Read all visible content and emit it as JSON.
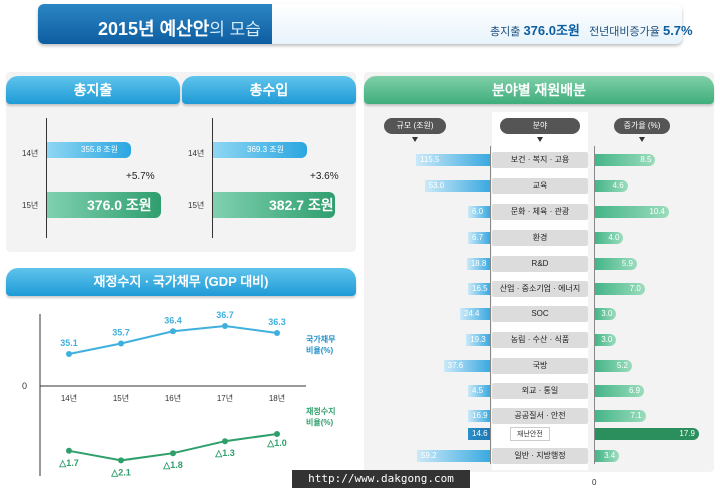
{
  "header": {
    "title_bold": "2015년 예산안",
    "title_rest": "의 모습",
    "total_label": "총지출",
    "total_value": "376.0조원",
    "growth_label": "전년대비증가율",
    "growth_value": "5.7%"
  },
  "spending_panel": {
    "title": "총지출",
    "y14": "14년",
    "y15": "15년",
    "v14": "355.8 조원",
    "v15": "376.0 조원",
    "change": "+5.7%"
  },
  "revenue_panel": {
    "title": "총수입",
    "y14": "14년",
    "y15": "15년",
    "v14": "369.3 조원",
    "v15": "382.7 조원",
    "change": "+3.6%"
  },
  "fiscal_panel": {
    "title": "재정수지 · 국가채무 (GDP 대비)",
    "zero": "0",
    "debt_label": "국가채무\n비율(%)",
    "balance_label": "재정수지\n비율(%)"
  },
  "allocation_panel": {
    "title": "분야별 재원배분",
    "col_scale": "규모 (조원)",
    "col_field": "분야",
    "col_growth": "증가율 (%)",
    "zero": "0",
    "sub_label": "재난안전"
  },
  "chart_data": [
    {
      "type": "line",
      "title": "재정수지 · 국가채무 (GDP 대비)",
      "categories": [
        "14년",
        "15년",
        "16년",
        "17년",
        "18년"
      ],
      "series": [
        {
          "name": "국가채무 비율(%)",
          "values": [
            35.1,
            35.7,
            36.4,
            36.7,
            36.3
          ],
          "labels": [
            "35.1",
            "35.7",
            "36.4",
            "36.7",
            "36.3"
          ],
          "color": "#3fb0dd"
        },
        {
          "name": "재정수지 비율(%)",
          "values": [
            -1.7,
            -2.1,
            -1.8,
            -1.3,
            -1.0
          ],
          "labels": [
            "△1.7",
            "△2.1",
            "△1.8",
            "△1.3",
            "△1.0"
          ],
          "color": "#2e9e6b"
        }
      ]
    },
    {
      "type": "bar",
      "title": "분야별 재원배분",
      "categories": [
        "보건 · 복지 · 고용",
        "교육",
        "문화 · 체육 · 관광",
        "환경",
        "R&D",
        "산업 · 중소기업 · 에너지",
        "SOC",
        "농림 · 수산 · 식품",
        "국방",
        "외교 · 통일",
        "공공질서 · 안전",
        "재난안전",
        "일반 · 지방행정"
      ],
      "series": [
        {
          "name": "규모 (조원)",
          "values": [
            115.5,
            53.0,
            6.0,
            6.7,
            18.8,
            16.5,
            24.4,
            19.3,
            37.6,
            4.5,
            16.9,
            14.6,
            59.2
          ],
          "labels": [
            "115.5",
            "53.0",
            "6.0",
            "6.7",
            "18.8",
            "16.5",
            "24.4",
            "19.3",
            "37.6",
            "4.5",
            "16.9",
            "14.6",
            "59.2"
          ]
        },
        {
          "name": "증가율 (%)",
          "values": [
            8.5,
            4.6,
            10.4,
            4.0,
            5.9,
            7.0,
            3.0,
            3.0,
            5.2,
            6.9,
            7.1,
            17.9,
            3.4
          ],
          "labels": [
            "8.5",
            "4.6",
            "10.4",
            "4.0",
            "5.9",
            "7.0",
            "3.0",
            "3.0",
            "5.2",
            "6.9",
            "7.1",
            "17.9",
            "3.4"
          ]
        }
      ]
    }
  ],
  "watermark": "http://www.dakgong.com"
}
